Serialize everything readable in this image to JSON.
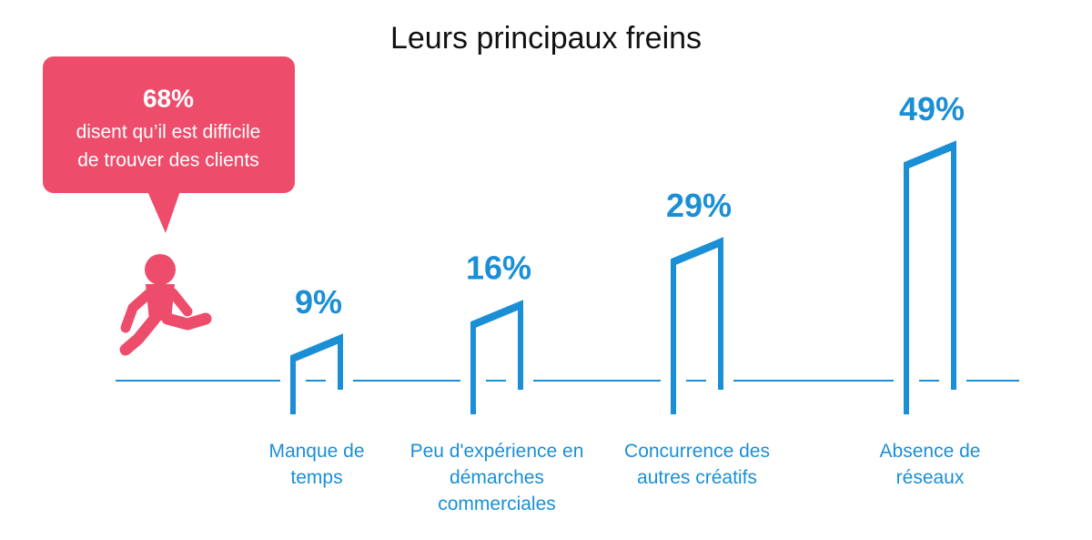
{
  "chart_data": {
    "type": "hurdle",
    "title": "Leurs principaux freins",
    "categories": [
      "Manque de temps",
      "Peu d'expérience en démarches commerciales",
      "Concurrence des autres créatifs",
      "Absence de réseaux"
    ],
    "values": [
      9,
      16,
      29,
      49
    ],
    "value_labels": [
      "9%",
      "16%",
      "29%",
      "49%"
    ],
    "color": "#1a8fd6",
    "annotation": {
      "value": 68,
      "label": "68%",
      "text": [
        "disent qu’il est difficile",
        "de trouver des clients"
      ],
      "color": "#ee4c6b"
    }
  }
}
